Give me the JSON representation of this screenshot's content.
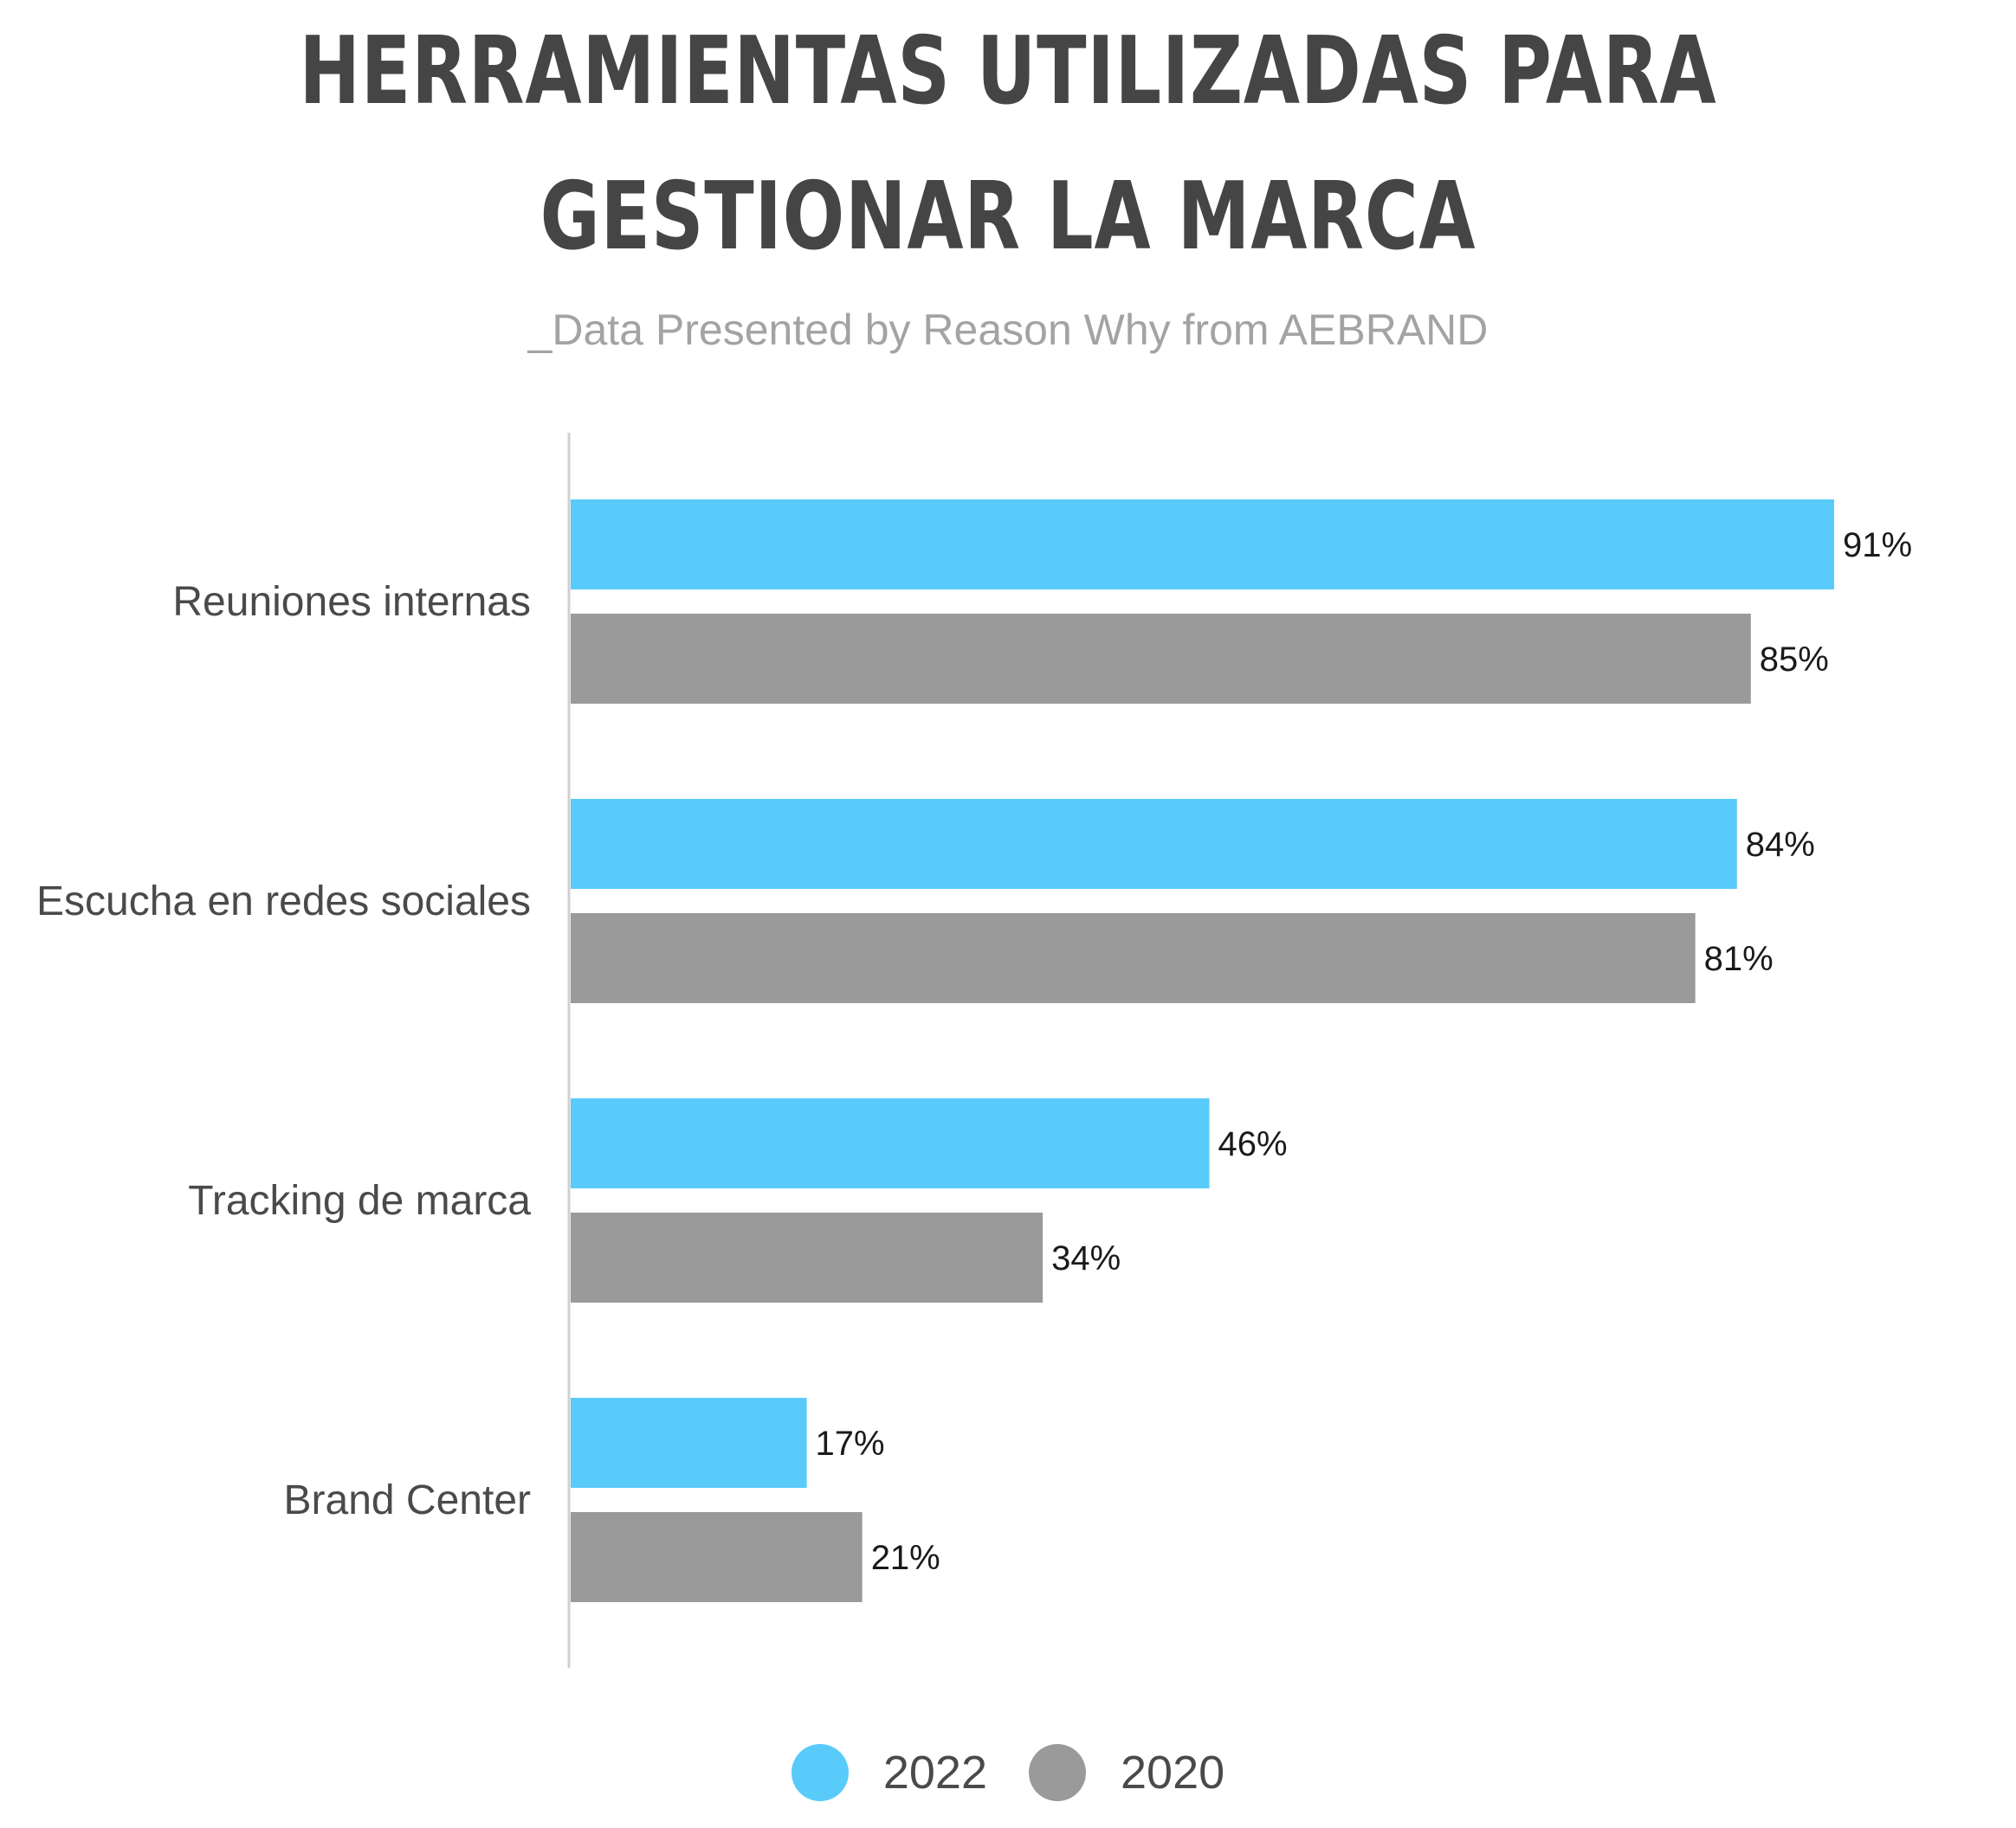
{
  "chart_data": {
    "type": "bar",
    "orientation": "horizontal",
    "title_line1": "HERRAMIENTAS UTILIZADAS PARA",
    "title_line2": "GESTIONAR LA MARCA",
    "subtitle": "_Data Presented by Reason Why from AEBRAND",
    "categories": [
      "Reuniones internas",
      "Escucha en redes sociales",
      "Tracking de marca",
      "Brand Center"
    ],
    "series": [
      {
        "name": "2022",
        "values": [
          91,
          84,
          46,
          17
        ],
        "labels": [
          "91%",
          "84%",
          "46%",
          "17%"
        ],
        "color": "#59cbfb"
      },
      {
        "name": "2020",
        "values": [
          85,
          81,
          34,
          21
        ],
        "labels": [
          "85%",
          "81%",
          "34%",
          "21%"
        ],
        "color": "#9a9a9a"
      }
    ],
    "xlim": [
      0,
      100
    ],
    "unit": "%",
    "grid": false,
    "legend_position": "bottom-center",
    "axis_color": "#d0d0d0"
  }
}
